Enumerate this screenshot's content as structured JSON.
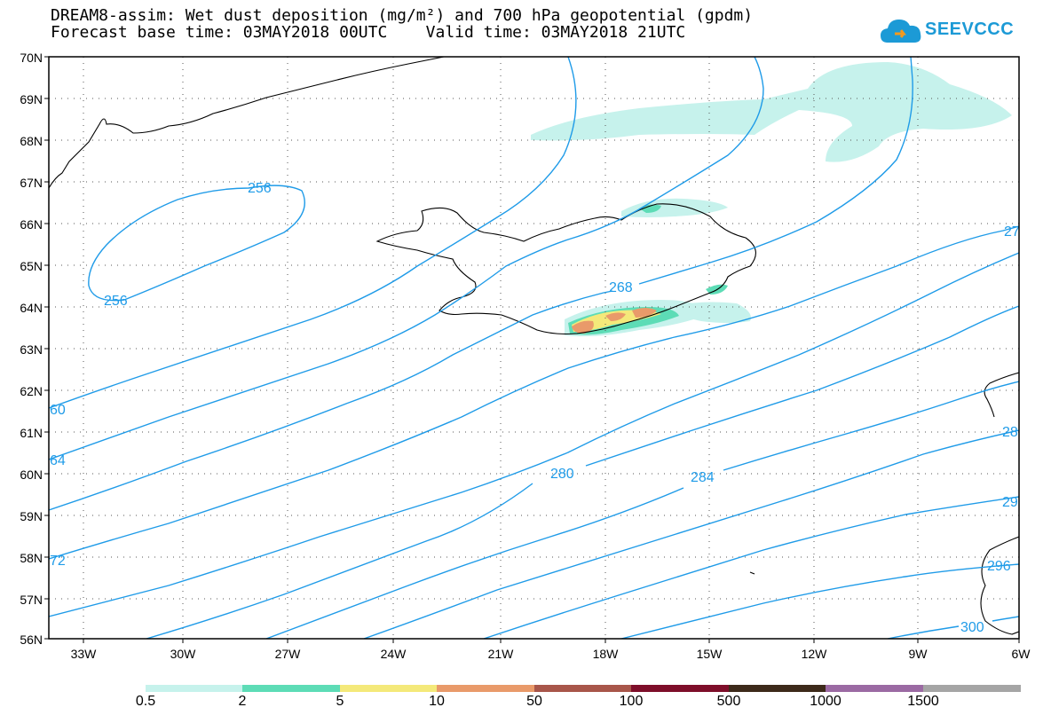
{
  "header": {
    "title_line1": "DREAM8-assim: Wet dust deposition (mg/m²) and 700 hPa geopotential (gpdm)",
    "title_line2": "Forecast base time: 03MAY2018 00UTC    Valid time: 03MAY2018 21UTC",
    "logo_text": "SEEVCCC"
  },
  "map": {
    "lon_ticks": [
      "33W",
      "30W",
      "27W",
      "24W",
      "21W",
      "18W",
      "15W",
      "12W",
      "9W",
      "6W"
    ],
    "lat_ticks": [
      "70N",
      "69N",
      "68N",
      "67N",
      "66N",
      "65N",
      "64N",
      "63N",
      "62N",
      "61N",
      "60N",
      "59N",
      "58N",
      "57N",
      "56N"
    ],
    "contour_labels": [
      "256",
      "256",
      "268",
      "280",
      "284",
      "60",
      "64",
      "72",
      "27",
      "28",
      "29",
      "296",
      "300"
    ],
    "contour_color": "#1f9be8"
  },
  "legend": {
    "labels": [
      "0.5",
      "2",
      "5",
      "10",
      "50",
      "100",
      "500",
      "1000",
      "1500"
    ],
    "colors": [
      "#c6f2ec",
      "#5ddcb6",
      "#f4e97a",
      "#e99a6a",
      "#a8564a",
      "#7e0e2a",
      "#3d2a1a",
      "#9b6aa3",
      "#a5a5a5"
    ]
  }
}
